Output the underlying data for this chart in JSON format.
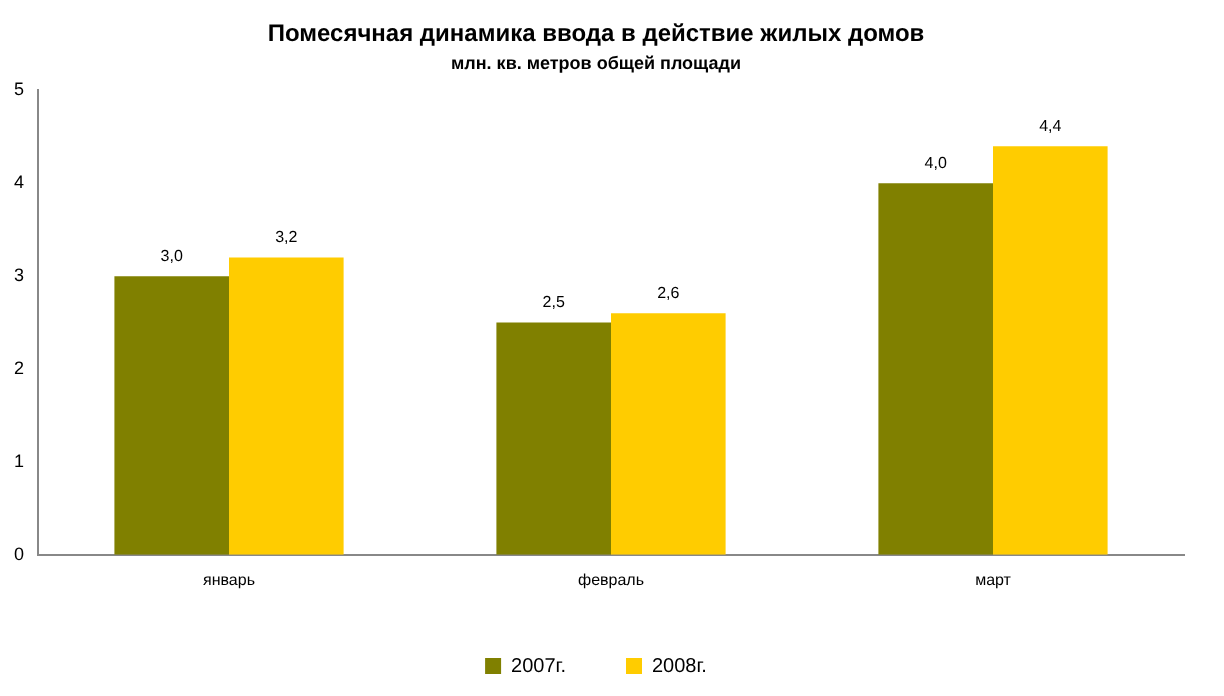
{
  "chart_data": {
    "type": "bar",
    "title": "Помесячная динамика ввода в действие жилых домов",
    "subtitle": "млн. кв. метров общей площади",
    "categories": [
      "январь",
      "февраль",
      "март"
    ],
    "series": [
      {
        "name": "2007г.",
        "color": "#808000",
        "values": [
          3.0,
          2.5,
          4.0
        ],
        "value_labels": [
          "3,0",
          "2,5",
          "4,0"
        ]
      },
      {
        "name": "2008г.",
        "color": "#ffcc00",
        "values": [
          3.2,
          2.6,
          4.4
        ],
        "value_labels": [
          "3,2",
          "2,6",
          "4,4"
        ]
      }
    ],
    "ylim": [
      0,
      5
    ],
    "yticks": [
      0,
      1,
      2,
      3,
      4,
      5
    ],
    "grid": false,
    "legend": "bottom"
  }
}
